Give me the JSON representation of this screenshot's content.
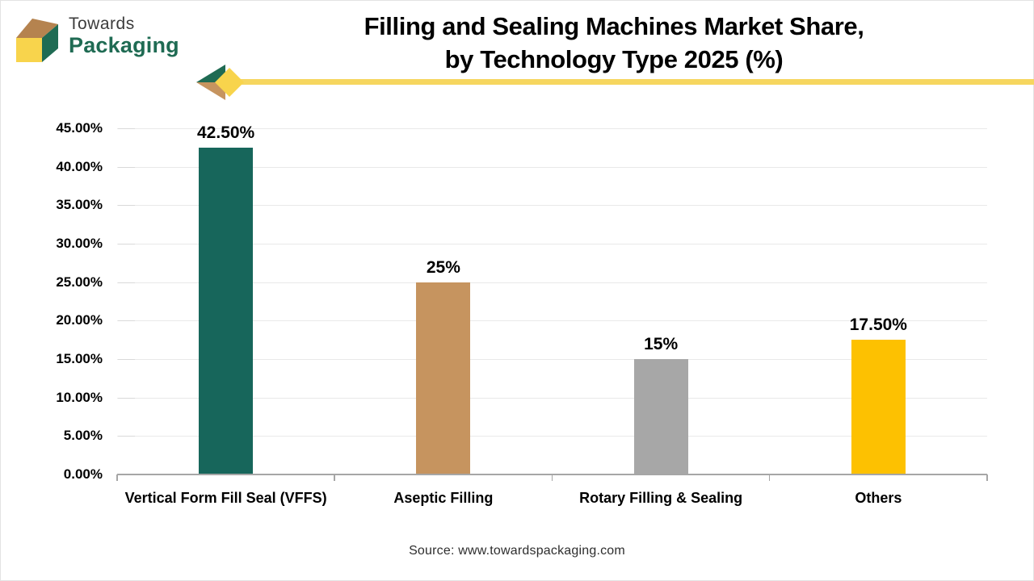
{
  "logo": {
    "brand_top": "Towards",
    "brand_bottom": "Packaging",
    "icon": "isometric-box-icon"
  },
  "brand": {
    "green": "#1f6b53",
    "tan_dark": "#b5834f",
    "tan": "#c6945f",
    "yellow_bright": "#f8d44c",
    "yellow_line": "#f6d65f",
    "gold": "#fdc101",
    "gray": "#a7a7a7"
  },
  "header": {
    "title_lines": [
      "Filling and Sealing Machines Market Share,",
      "by Technology Type 2025 (%)"
    ],
    "divider_icon": "arrow-diamond-icon"
  },
  "chart_data": {
    "type": "bar",
    "title": "Filling and Sealing Machines Market Share, by Technology Type 2025 (%)",
    "categories": [
      "Vertical Form Fill Seal (VFFS)",
      "Aseptic Filling",
      "Rotary Filling & Sealing",
      "Others"
    ],
    "values": [
      42.5,
      25,
      15,
      17.5
    ],
    "value_labels": [
      "42.50%",
      "25%",
      "15%",
      "17.50%"
    ],
    "bar_colors": [
      "#17665b",
      "#c6945f",
      "#a7a7a7",
      "#fdc101"
    ],
    "xlabel": "",
    "ylabel": "",
    "ylim": [
      0,
      45
    ],
    "ytick_step": 5,
    "ytick_labels": [
      "0.00%",
      "5.00%",
      "10.00%",
      "15.00%",
      "20.00%",
      "25.00%",
      "30.00%",
      "35.00%",
      "40.00%",
      "45.00%"
    ],
    "grid": true,
    "legend": false
  },
  "footer": {
    "source": "Source: www.towardspackaging.com"
  }
}
